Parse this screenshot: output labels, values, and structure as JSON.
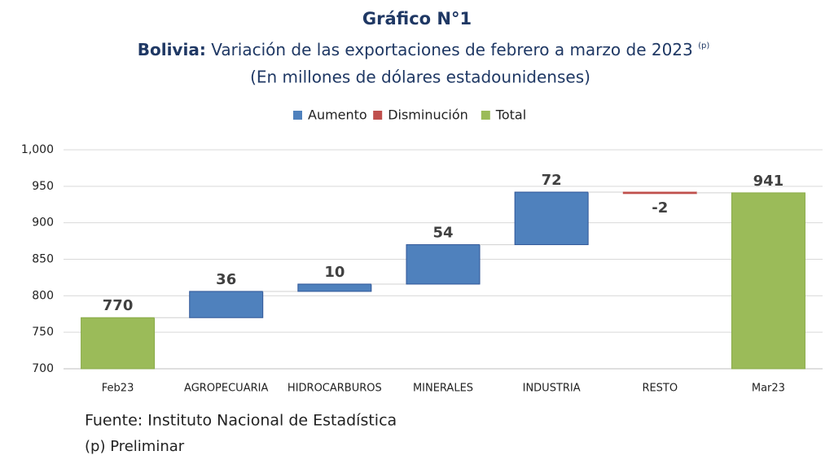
{
  "chart_data": {
    "type": "waterfall",
    "title": "Gráfico N°1",
    "subtitle": {
      "lead": "Bolivia:",
      "text": "Variación de las exportaciones de febrero a marzo de 2023",
      "note": "(p)"
    },
    "subtitle2": "(En millones de dólares estadounidenses)",
    "categories": [
      "Feb23",
      "AGROPECUARIA",
      "HIDROCARBUROS",
      "MINERALES",
      "INDUSTRIA",
      "RESTO",
      "Mar23"
    ],
    "series": [
      {
        "name": "Aumento",
        "color": "#4f81bd",
        "values": [
          null,
          36,
          10,
          54,
          72,
          null,
          null
        ]
      },
      {
        "name": "Disminución",
        "color": "#c0504d",
        "values": [
          null,
          null,
          null,
          null,
          null,
          -2,
          null
        ]
      },
      {
        "name": "Total",
        "color": "#9bbb59",
        "values": [
          770,
          null,
          null,
          null,
          null,
          null,
          941
        ]
      }
    ],
    "ylim": [
      700,
      1000
    ],
    "yticks": [
      700,
      750,
      800,
      850,
      900,
      950,
      {
        "value": 1000,
        "label": "1,000"
      }
    ],
    "grid": true,
    "legend": "top",
    "source": "Fuente: Instituto Nacional de Estadística",
    "footnote": "(p) Preliminar"
  }
}
